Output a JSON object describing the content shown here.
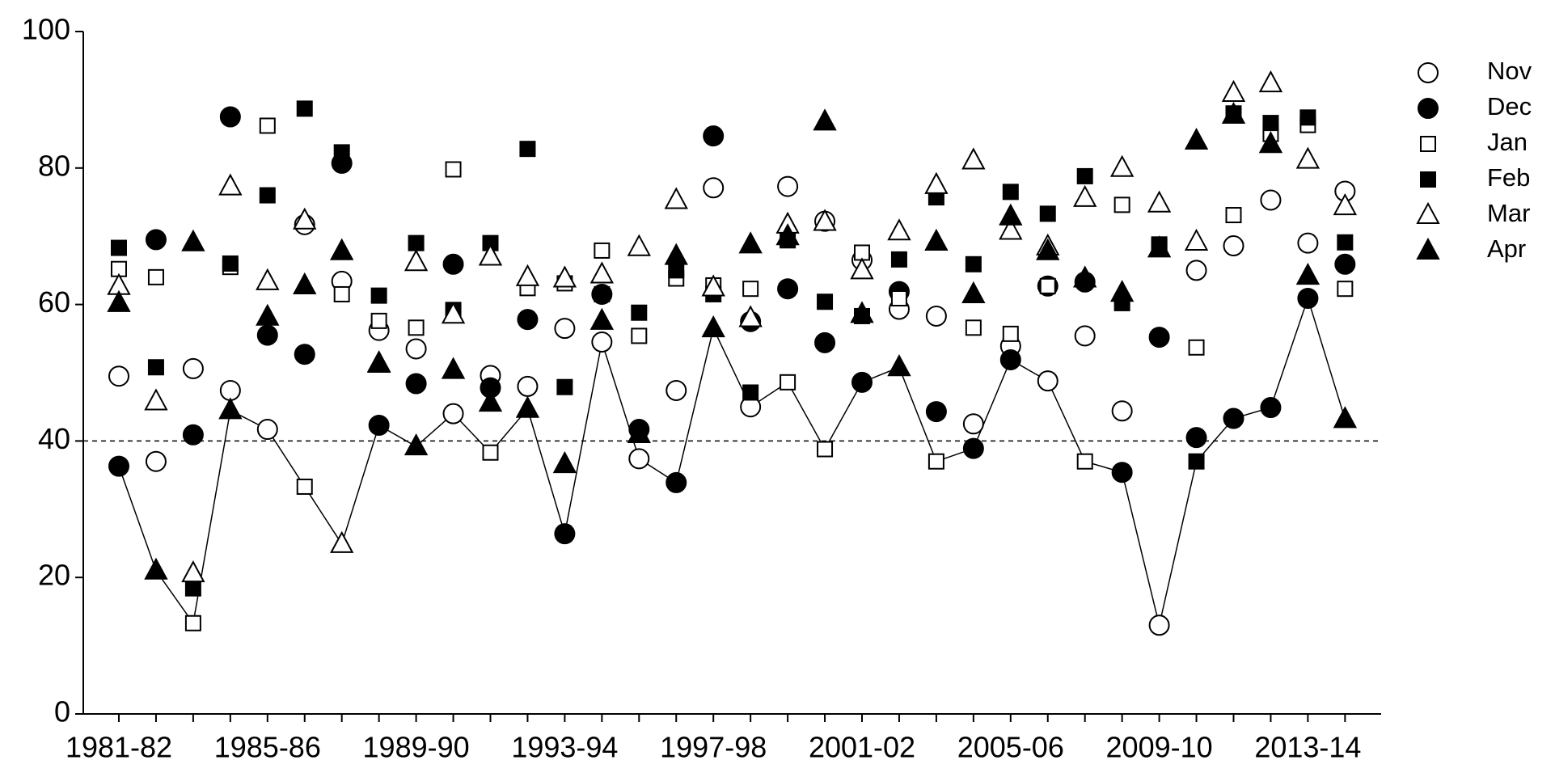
{
  "chart_data": {
    "type": "scatter",
    "categories": [
      "1981-82",
      null,
      null,
      null,
      "1985-86",
      null,
      null,
      null,
      "1989-90",
      null,
      null,
      null,
      "1993-94",
      null,
      null,
      null,
      "1997-98",
      null,
      null,
      null,
      "2001-02",
      null,
      null,
      null,
      "2005-06",
      null,
      null,
      null,
      "2009-10",
      null,
      null,
      null,
      "2013-14",
      null
    ],
    "ylim": [
      0,
      100
    ],
    "yticks": [
      0,
      20,
      40,
      60,
      80,
      100
    ],
    "reference_line": 40,
    "connect_minimum": true,
    "legend": "right",
    "series": [
      {
        "name": "Nov",
        "marker": "circle",
        "color": "#000000",
        "fill": "#ffffff",
        "values": [
          49.5,
          37,
          50.6,
          47.4,
          41.7,
          71.7,
          63.4,
          56.2,
          53.5,
          44,
          49.6,
          48,
          56.5,
          54.5,
          37.4,
          47.4,
          77.1,
          45,
          77.3,
          72.2,
          66.5,
          59.3,
          58.3,
          42.5,
          53.9,
          48.8,
          55.4,
          44.4,
          13,
          65,
          68.6,
          75.3,
          69,
          76.6
        ]
      },
      {
        "name": "Dec",
        "marker": "circle",
        "color": "#000000",
        "fill": "#000000",
        "values": [
          36.3,
          69.5,
          40.9,
          87.5,
          55.5,
          52.7,
          80.7,
          42.3,
          48.4,
          65.9,
          47.8,
          57.8,
          26.4,
          61.5,
          41.7,
          33.9,
          84.7,
          57.5,
          62.3,
          54.4,
          48.6,
          61.9,
          44.3,
          38.9,
          51.9,
          62.7,
          63.3,
          35.4,
          55.2,
          40.5,
          43.3,
          44.9,
          60.9,
          65.9
        ]
      },
      {
        "name": "Jan",
        "marker": "square",
        "color": "#000000",
        "fill": "#ffffff",
        "values": [
          65.2,
          64,
          13.3,
          65.5,
          86.2,
          33.3,
          61.5,
          57.6,
          56.6,
          79.8,
          38.3,
          62.4,
          63.1,
          67.9,
          55.4,
          63.8,
          62.8,
          62.3,
          48.6,
          38.8,
          67.6,
          60.9,
          37,
          56.6,
          55.7,
          62.7,
          37,
          74.6,
          68.5,
          53.7,
          73.1,
          85,
          86.3,
          62.3
        ]
      },
      {
        "name": "Feb",
        "marker": "square",
        "color": "#000000",
        "fill": "#000000",
        "values": [
          68.3,
          50.8,
          18.4,
          66,
          76,
          88.7,
          82.3,
          61.3,
          69,
          59.2,
          69,
          82.8,
          47.9,
          61.5,
          58.8,
          65,
          61.5,
          47.1,
          69.4,
          60.4,
          58.3,
          66.6,
          75.7,
          65.9,
          76.5,
          73.3,
          78.8,
          60.2,
          68.8,
          37,
          88,
          86.6,
          87.4,
          69.1
        ]
      },
      {
        "name": "Mar",
        "marker": "triangle",
        "color": "#000000",
        "fill": "#ffffff",
        "values": [
          62.7,
          45.8,
          20.6,
          77.3,
          63.4,
          72.3,
          24.9,
          51.4,
          66.2,
          58.5,
          67,
          64,
          63.8,
          64.4,
          68.4,
          75.3,
          62.5,
          58,
          71.7,
          72.1,
          65,
          70.7,
          77.5,
          81.1,
          70.8,
          68.5,
          75.6,
          80,
          74.8,
          69.2,
          91,
          92.4,
          81.2,
          74.4
        ]
      },
      {
        "name": "Apr",
        "marker": "triangle",
        "color": "#000000",
        "fill": "#000000",
        "values": [
          60.2,
          21,
          69.1,
          44.5,
          58.2,
          62.8,
          67.8,
          51.3,
          39.2,
          50.4,
          45.6,
          44.7,
          36.6,
          57.6,
          41,
          67.1,
          56.5,
          68.8,
          70,
          86.8,
          58.6,
          50.8,
          69.2,
          61.5,
          72.9,
          67.8,
          63.8,
          61.7,
          68.2,
          84,
          87.8,
          83.5,
          64.2,
          43.2
        ]
      }
    ]
  }
}
